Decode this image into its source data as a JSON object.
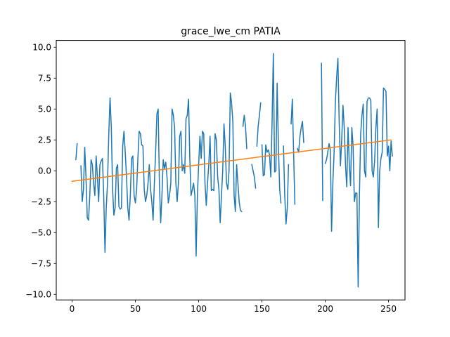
{
  "chart_data": {
    "type": "line",
    "title": "grace_lwe_cm PATIA",
    "xlabel": "",
    "ylabel": "",
    "xlim": [
      -12.5,
      263
    ],
    "ylim": [
      -10.45,
      10.55
    ],
    "x_ticks": [
      0,
      50,
      100,
      150,
      200,
      250
    ],
    "y_ticks": [
      -10.0,
      -7.5,
      -5.0,
      -2.5,
      0.0,
      2.5,
      5.0,
      7.5,
      10.0
    ],
    "x_tick_labels": [
      "0",
      "50",
      "100",
      "150",
      "200",
      "250"
    ],
    "y_tick_labels": [
      "−10.0",
      "−7.5",
      "−5.0",
      "−2.5",
      "0.0",
      "2.5",
      "5.0",
      "7.5",
      "10.0"
    ],
    "grid": false,
    "legend": "none",
    "series": [
      {
        "color": "#1f77b4",
        "segments": [
          [
            [
              3,
              0.9
            ],
            [
              4,
              2.2
            ]
          ],
          [
            [
              7,
              0.4
            ],
            [
              8,
              -2.5
            ],
            [
              9,
              -1.5
            ],
            [
              10,
              1.9
            ],
            [
              11,
              -0.5
            ],
            [
              12,
              -3.8
            ],
            [
              13,
              -4.0
            ],
            [
              14,
              -2.0
            ],
            [
              15,
              0.9
            ],
            [
              16,
              0.5
            ],
            [
              17,
              -1.0
            ],
            [
              18,
              -2.0
            ],
            [
              19,
              1.2
            ],
            [
              20,
              -0.5
            ],
            [
              21,
              -2.5
            ],
            [
              22,
              0.5
            ],
            [
              23,
              0.8
            ],
            [
              24,
              1.0
            ],
            [
              25,
              -2.0
            ],
            [
              26,
              -6.6
            ],
            [
              27,
              -3.0
            ],
            [
              28,
              -1.0
            ],
            [
              29,
              3.0
            ],
            [
              30,
              5.9
            ],
            [
              31,
              3.5
            ],
            [
              32,
              -1.5
            ],
            [
              33,
              -3.6
            ],
            [
              34,
              -3.0
            ],
            [
              35,
              0.2
            ],
            [
              36,
              0.5
            ],
            [
              37,
              -2.9
            ],
            [
              38,
              -3.1
            ],
            [
              39,
              -3.0
            ],
            [
              40,
              2.0
            ],
            [
              41,
              3.2
            ],
            [
              42,
              1.5
            ],
            [
              43,
              -0.5
            ],
            [
              44,
              -3.0
            ],
            [
              45,
              -4.0
            ],
            [
              46,
              -2.0
            ],
            [
              47,
              1.0
            ],
            [
              48,
              1.2
            ],
            [
              49,
              -2.0
            ],
            [
              50,
              -2.6
            ],
            [
              51,
              -1.5
            ],
            [
              52,
              1.0
            ],
            [
              53,
              3.2
            ],
            [
              54,
              3.0
            ],
            [
              55,
              2.1
            ],
            [
              56,
              2.0
            ],
            [
              57,
              -1.5
            ],
            [
              58,
              -2.5
            ],
            [
              59,
              -2.0
            ],
            [
              60,
              -1.0
            ],
            [
              61,
              0.5
            ],
            [
              62,
              -1.5
            ],
            [
              63,
              -2.5
            ],
            [
              64,
              -4.0
            ],
            [
              65,
              -1.0
            ],
            [
              66,
              1.5
            ],
            [
              67,
              4.6
            ],
            [
              68,
              5.0
            ],
            [
              69,
              -1.0
            ],
            [
              70,
              -4.2
            ],
            [
              71,
              -2.0
            ],
            [
              72,
              0.9
            ],
            [
              73,
              0.2
            ],
            [
              74,
              0.7
            ],
            [
              75,
              -0.5
            ],
            [
              76,
              -2.6
            ],
            [
              77,
              -2.0
            ],
            [
              78,
              -1.0
            ],
            [
              79,
              5.0
            ],
            [
              80,
              4.5
            ],
            [
              81,
              3.5
            ],
            [
              82,
              -1.0
            ],
            [
              83,
              -2.5
            ],
            [
              84,
              -1.0
            ],
            [
              85,
              2.8
            ],
            [
              86,
              3.2
            ],
            [
              87,
              0.0
            ],
            [
              88,
              0.5
            ],
            [
              89,
              -0.2
            ],
            [
              90,
              4.2
            ],
            [
              91,
              4.5
            ],
            [
              92,
              5.8
            ],
            [
              93,
              1.0
            ],
            [
              94,
              -2.0
            ],
            [
              95,
              -1.5
            ],
            [
              96,
              -1.0
            ],
            [
              97,
              -2.0
            ],
            [
              98,
              -6.9
            ],
            [
              99,
              -2.0
            ],
            [
              100,
              0.5
            ],
            [
              101,
              2.8
            ],
            [
              102,
              1.0
            ],
            [
              103,
              3.2
            ],
            [
              104,
              3.0
            ],
            [
              105,
              -1.0
            ],
            [
              106,
              -2.8
            ],
            [
              107,
              -1.0
            ],
            [
              108,
              0.5
            ],
            [
              109,
              2.8
            ],
            [
              110,
              -1.6
            ],
            [
              111,
              -1.5
            ],
            [
              112,
              -1.6
            ],
            [
              113,
              3.0
            ],
            [
              114,
              2.5
            ],
            [
              115,
              -0.5
            ],
            [
              116,
              -1.5
            ],
            [
              117,
              -4.2
            ],
            [
              118,
              -2.0
            ],
            [
              119,
              0.0
            ],
            [
              120,
              3.8
            ],
            [
              121,
              2.0
            ],
            [
              122,
              -1.0
            ],
            [
              123,
              -1.5
            ],
            [
              124,
              0.0
            ],
            [
              125,
              6.3
            ],
            [
              126,
              5.5
            ],
            [
              127,
              4.0
            ],
            [
              128,
              -2.0
            ],
            [
              129,
              -3.3
            ],
            [
              130,
              0.5
            ],
            [
              131,
              -1.0
            ],
            [
              132,
              -2.5
            ],
            [
              133,
              -3.2
            ],
            [
              134,
              -3.3
            ]
          ],
          [
            [
              135,
              3.6
            ],
            [
              136,
              4.5
            ],
            [
              137,
              3.6
            ],
            [
              138,
              1.8
            ]
          ],
          [
            [
              142,
              0.5
            ],
            [
              143,
              0.0
            ],
            [
              144,
              -0.5
            ],
            [
              145,
              -1.4
            ]
          ],
          [
            [
              146,
              2.0
            ],
            [
              147,
              3.6
            ],
            [
              148,
              4.5
            ],
            [
              149,
              5.5
            ]
          ],
          [
            [
              150,
              2.1
            ],
            [
              151,
              -0.4
            ],
            [
              152,
              -0.3
            ],
            [
              153,
              2.1
            ],
            [
              154,
              1.5
            ],
            [
              155,
              1.7
            ],
            [
              156,
              1.3
            ],
            [
              157,
              -0.5
            ],
            [
              158,
              4.0
            ],
            [
              159,
              9.5
            ],
            [
              160,
              -0.1
            ],
            [
              161,
              0.0
            ],
            [
              162,
              7.1
            ],
            [
              163,
              2.0
            ],
            [
              164,
              -1.5
            ],
            [
              165,
              -2.6
            ]
          ],
          [
            [
              167,
              2.0
            ],
            [
              168,
              -2.0
            ],
            [
              169,
              -4.3
            ],
            [
              170,
              -3.0
            ],
            [
              171,
              0.5
            ]
          ],
          [
            [
              173,
              3.8
            ],
            [
              174,
              5.8
            ],
            [
              175,
              1.5
            ],
            [
              176,
              -2.7
            ]
          ],
          [
            [
              178,
              1.8
            ],
            [
              179,
              1.5
            ],
            [
              180,
              2.8
            ],
            [
              181,
              3.5
            ],
            [
              182,
              4.0
            ],
            [
              183,
              2.3
            ]
          ],
          [
            [
              197,
              8.7
            ],
            [
              198,
              -2.4
            ]
          ],
          [
            [
              200,
              0.6
            ],
            [
              201,
              0.9
            ],
            [
              202,
              1.5
            ],
            [
              203,
              2.2
            ],
            [
              204,
              1.7
            ],
            [
              205,
              -4.9
            ],
            [
              206,
              -1.0
            ],
            [
              207,
              1.5
            ],
            [
              208,
              5.6
            ],
            [
              209,
              7.6
            ],
            [
              210,
              9.1
            ],
            [
              211,
              4.0
            ],
            [
              212,
              0.4
            ],
            [
              213,
              2.5
            ],
            [
              214,
              5.3
            ],
            [
              215,
              3.5
            ],
            [
              216,
              0.5
            ],
            [
              217,
              -1.3
            ],
            [
              218,
              3.5
            ],
            [
              219,
              0.5
            ],
            [
              220,
              -1.2
            ],
            [
              221,
              3.5
            ],
            [
              222,
              2.0
            ],
            [
              223,
              -2.5
            ],
            [
              224,
              -1.8
            ],
            [
              225,
              -1.8
            ],
            [
              226,
              -9.4
            ],
            [
              227,
              -2.0
            ],
            [
              228,
              3.0
            ],
            [
              229,
              4.5
            ],
            [
              230,
              5.4
            ],
            [
              231,
              0.0
            ],
            [
              232,
              -0.5
            ],
            [
              233,
              5.6
            ],
            [
              234,
              5.9
            ],
            [
              235,
              5.9
            ],
            [
              236,
              5.7
            ],
            [
              237,
              0.0
            ],
            [
              238,
              -0.5
            ],
            [
              239,
              0.8
            ],
            [
              240,
              3.5
            ],
            [
              241,
              5.0
            ],
            [
              242,
              -4.6
            ],
            [
              243,
              0.0
            ],
            [
              244,
              1.0
            ],
            [
              245,
              1.5
            ],
            [
              246,
              6.7
            ],
            [
              247,
              6.6
            ],
            [
              248,
              6.4
            ],
            [
              249,
              1.2
            ],
            [
              250,
              2.0
            ],
            [
              251,
              0.0
            ],
            [
              252,
              2.4
            ],
            [
              253,
              1.2
            ]
          ]
        ]
      },
      {
        "color": "#ff7f0e",
        "segments": [
          [
            [
              0,
              -0.85
            ],
            [
              252,
              2.5
            ]
          ]
        ]
      }
    ]
  }
}
